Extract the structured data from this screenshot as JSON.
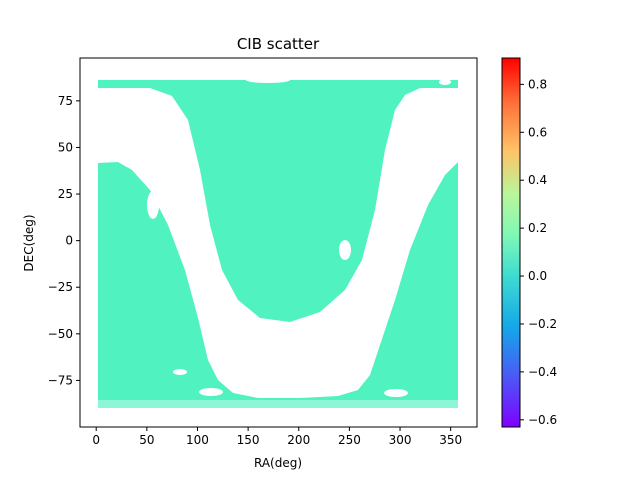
{
  "chart_data": {
    "type": "heatmap",
    "title": "CIB scatter",
    "xlabel": "RA(deg)",
    "ylabel": "DEC(deg)",
    "xlim": [
      -16,
      376
    ],
    "ylim": [
      -100,
      98
    ],
    "xticks": [
      0,
      50,
      100,
      150,
      200,
      250,
      300,
      350
    ],
    "yticks": [
      -75,
      -50,
      -25,
      0,
      25,
      50,
      75
    ],
    "grid": false,
    "field_value": 0.0,
    "fill_color": "#50f2c0",
    "colorbar": {
      "colormap": "rainbow",
      "range": [
        -0.63,
        0.91
      ],
      "ticks": [
        -0.6,
        -0.4,
        -0.2,
        0.0,
        0.2,
        0.4,
        0.6,
        0.8
      ],
      "tick_labels": [
        "−0.6",
        "−0.4",
        "−0.2",
        "0.0",
        "0.2",
        "0.4",
        "0.6",
        "0.8"
      ]
    },
    "masked_band": {
      "description_free": true,
      "points": [
        [
          50,
          42
        ],
        [
          55,
          40
        ],
        [
          60,
          38
        ],
        [
          70,
          33
        ],
        [
          80,
          20
        ],
        [
          100,
          -15
        ],
        [
          120,
          -55
        ],
        [
          130,
          -70
        ],
        [
          150,
          -84
        ],
        [
          200,
          -84
        ],
        [
          250,
          -82
        ],
        [
          270,
          -75
        ],
        [
          285,
          -55
        ],
        [
          300,
          -25
        ],
        [
          315,
          5
        ],
        [
          330,
          25
        ],
        [
          350,
          37
        ],
        [
          360,
          42
        ]
      ],
      "top_points": [
        [
          50,
          89
        ],
        [
          360,
          89
        ],
        [
          360,
          84
        ],
        [
          300,
          84
        ],
        [
          285,
          70
        ],
        [
          270,
          20
        ],
        [
          255,
          -10
        ],
        [
          230,
          -30
        ],
        [
          200,
          -42
        ],
        [
          170,
          -38
        ],
        [
          145,
          -15
        ],
        [
          125,
          20
        ],
        [
          105,
          60
        ],
        [
          90,
          82
        ],
        [
          50,
          84
        ]
      ]
    }
  }
}
